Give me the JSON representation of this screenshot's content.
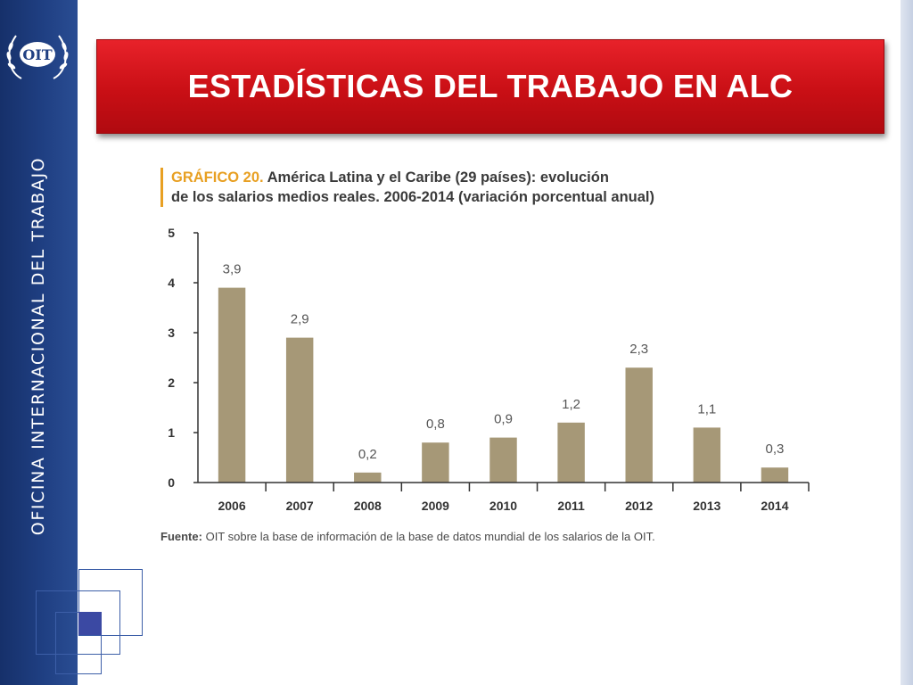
{
  "slide": {
    "title": "ESTADÍSTICAS DEL TRABAJO EN ALC",
    "sidebar_text": "OFICINA INTERNACIONAL DEL TRABAJO",
    "logo_text": "OIT"
  },
  "colors": {
    "sidebar": "#1f3f82",
    "banner": "#d8161d",
    "bar": "#a69877",
    "caption_accent": "#e8a023"
  },
  "chart_caption": {
    "label": "GRÁFICO 20.",
    "line1": "América Latina y el Caribe (29 países): evolución",
    "line2": "de los salarios medios reales. 2006-2014 (variación porcentual anual)"
  },
  "chart_source": {
    "label": "Fuente:",
    "text": "OIT sobre la base de información de la base de datos mundial de los salarios de la OIT."
  },
  "chart_data": {
    "type": "bar",
    "title": "",
    "xlabel": "",
    "ylabel": "",
    "categories": [
      "2006",
      "2007",
      "2008",
      "2009",
      "2010",
      "2011",
      "2012",
      "2013",
      "2014"
    ],
    "values": [
      3.9,
      2.9,
      0.2,
      0.8,
      0.9,
      1.2,
      2.3,
      1.1,
      0.3
    ],
    "value_labels": [
      "3,9",
      "2,9",
      "0,2",
      "0,8",
      "0,9",
      "1,2",
      "2,3",
      "1,1",
      "0,3"
    ],
    "ylim": [
      0,
      5
    ],
    "yticks": [
      0,
      1,
      2,
      3,
      4,
      5
    ],
    "grid": false,
    "legend": "none"
  }
}
